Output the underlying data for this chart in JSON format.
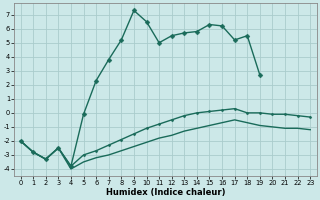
{
  "xlabel": "Humidex (Indice chaleur)",
  "bg_color": "#cce8e8",
  "grid_color": "#aacccc",
  "line_color": "#1a6b5a",
  "markersize": 2.5,
  "linewidth": 1.0,
  "ylim": [
    -4.5,
    7.8
  ],
  "xlim": [
    -0.5,
    23.5
  ],
  "yticks": [
    -4,
    -3,
    -2,
    -1,
    0,
    1,
    2,
    3,
    4,
    5,
    6,
    7
  ],
  "xticks": [
    0,
    1,
    2,
    3,
    4,
    5,
    6,
    7,
    8,
    9,
    10,
    11,
    12,
    13,
    14,
    15,
    16,
    17,
    18,
    19,
    20,
    21,
    22,
    23
  ],
  "line1_x": [
    0,
    1,
    2,
    3,
    4,
    5,
    6,
    7,
    8,
    9,
    10,
    11,
    12,
    13,
    14,
    15,
    16,
    17,
    18,
    19
  ],
  "line1_y": [
    -2.0,
    -2.8,
    -3.3,
    -2.5,
    -3.8,
    -0.1,
    2.3,
    3.8,
    5.2,
    7.3,
    6.5,
    5.0,
    5.5,
    5.7,
    5.8,
    6.3,
    6.2,
    5.2,
    5.5,
    2.7
  ],
  "line2_x": [
    0,
    1,
    2,
    3,
    4,
    5,
    6,
    7,
    8,
    9,
    10,
    11,
    12,
    13,
    14,
    15,
    16,
    17,
    18,
    19,
    20,
    21,
    22,
    23
  ],
  "line2_y": [
    -2.0,
    -2.8,
    -3.3,
    -2.5,
    -3.8,
    -3.0,
    -2.7,
    -2.3,
    -1.9,
    -1.5,
    -1.1,
    -0.8,
    -0.5,
    -0.2,
    0.0,
    0.1,
    0.2,
    0.3,
    0.0,
    -0.0,
    -0.1,
    -0.1,
    -0.2,
    -0.3
  ],
  "line3_x": [
    0,
    1,
    2,
    3,
    4,
    5,
    6,
    7,
    8,
    9,
    10,
    11,
    12,
    13,
    14,
    15,
    16,
    17,
    18,
    19,
    20,
    21,
    22,
    23
  ],
  "line3_y": [
    -2.0,
    -2.8,
    -3.3,
    -2.5,
    -4.0,
    -3.5,
    -3.2,
    -3.0,
    -2.7,
    -2.4,
    -2.1,
    -1.8,
    -1.6,
    -1.3,
    -1.1,
    -0.9,
    -0.7,
    -0.5,
    -0.7,
    -0.9,
    -1.0,
    -1.1,
    -1.1,
    -1.2
  ],
  "xlabel_fontsize": 6,
  "tick_fontsize": 4.8
}
